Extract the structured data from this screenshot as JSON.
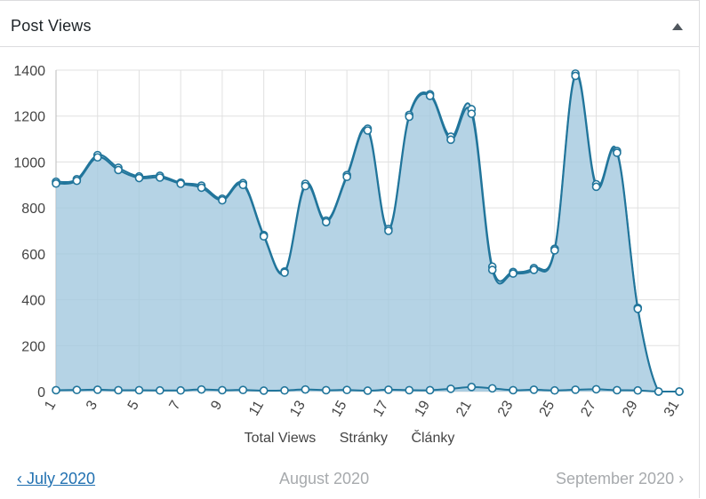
{
  "widget": {
    "title": "Post Views"
  },
  "legend": [
    "Total Views",
    "Stránky",
    "Články"
  ],
  "pager": {
    "prev": "‹ July 2020",
    "current": "August 2020",
    "next": "September 2020 ›"
  },
  "colors": {
    "line": "#21759b",
    "fill": "#a3c8de",
    "grid": "#e0e0e0"
  },
  "chart_data": {
    "type": "area",
    "x": [
      1,
      2,
      3,
      4,
      5,
      6,
      7,
      8,
      9,
      10,
      11,
      12,
      13,
      14,
      15,
      16,
      17,
      18,
      19,
      20,
      21,
      22,
      23,
      24,
      25,
      26,
      27,
      28,
      29,
      30,
      31
    ],
    "xticks": [
      1,
      3,
      5,
      7,
      9,
      11,
      13,
      15,
      17,
      19,
      21,
      23,
      25,
      27,
      29,
      31
    ],
    "ylim": [
      0,
      1400
    ],
    "yticks": [
      0,
      200,
      400,
      600,
      800,
      1000,
      1200,
      1400
    ],
    "grid": true,
    "legend_position": "bottom",
    "series": [
      {
        "name": "Total Views",
        "values": [
          914,
          925,
          1030,
          975,
          937,
          940,
          910,
          897,
          840,
          908,
          682,
          523,
          905,
          745,
          943,
          1145,
          708,
          1205,
          1295,
          1110,
          1230,
          544,
          521,
          538,
          622,
          1385,
          903,
          1048,
          365,
          0,
          0
        ]
      },
      {
        "name": "Stránky",
        "values": [
          906,
          918,
          1020,
          965,
          930,
          932,
          905,
          888,
          833,
          900,
          676,
          518,
          895,
          738,
          935,
          1137,
          700,
          1197,
          1288,
          1097,
          1210,
          530,
          514,
          530,
          615,
          1375,
          892,
          1040,
          360,
          0,
          0
        ]
      },
      {
        "name": "Články",
        "values": [
          6,
          7,
          8,
          6,
          6,
          5,
          5,
          9,
          6,
          7,
          4,
          5,
          9,
          6,
          7,
          4,
          8,
          6,
          6,
          12,
          20,
          14,
          6,
          8,
          5,
          8,
          10,
          6,
          5,
          0,
          0
        ]
      }
    ]
  }
}
